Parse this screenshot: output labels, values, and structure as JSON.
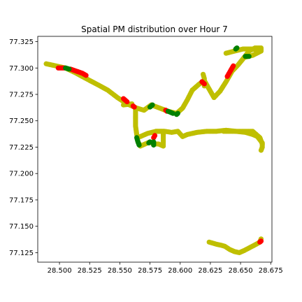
{
  "chart_data": {
    "type": "scatter",
    "title": "Spatial PM distribution over Hour 7",
    "xlabel": "",
    "ylabel": "",
    "xlim": [
      28.482,
      28.676
    ],
    "ylim": [
      77.116,
      77.33
    ],
    "grid": false,
    "legend": "none",
    "x_ticks": [
      "28.500",
      "28.525",
      "28.550",
      "28.575",
      "28.600",
      "28.625",
      "28.650",
      "28.675"
    ],
    "x_tick_values": [
      28.5,
      28.525,
      28.55,
      28.575,
      28.6,
      28.625,
      28.65,
      28.675
    ],
    "y_ticks": [
      "77.125",
      "77.150",
      "77.175",
      "77.200",
      "77.225",
      "77.250",
      "77.275",
      "77.300",
      "77.325"
    ],
    "y_tick_values": [
      77.125,
      77.15,
      77.175,
      77.2,
      77.225,
      77.25,
      77.275,
      77.3,
      77.325
    ],
    "colors": {
      "olive": "#bfbf00",
      "red": "#ff0000",
      "green": "#008000"
    },
    "series": [
      {
        "name": "yellow",
        "color": "#bfbf00",
        "paths": [
          [
            [
              28.489,
              77.304
            ],
            [
              28.497,
              77.302
            ],
            [
              28.505,
              77.3
            ],
            [
              28.514,
              77.295
            ],
            [
              28.522,
              77.29
            ],
            [
              28.532,
              77.284
            ],
            [
              28.54,
              77.279
            ],
            [
              28.548,
              77.272
            ],
            [
              28.556,
              77.266
            ],
            [
              28.564,
              77.262
            ],
            [
              28.57,
              77.26
            ],
            [
              28.576,
              77.265
            ],
            [
              28.583,
              77.262
            ],
            [
              28.59,
              77.259
            ],
            [
              28.597,
              77.257
            ],
            [
              28.602,
              77.262
            ],
            [
              28.606,
              77.27
            ],
            [
              28.61,
              77.279
            ],
            [
              28.616,
              77.285
            ],
            [
              28.62,
              77.288
            ],
            [
              28.624,
              77.28
            ],
            [
              28.628,
              77.272
            ],
            [
              28.633,
              77.278
            ],
            [
              28.638,
              77.287
            ],
            [
              28.643,
              77.297
            ],
            [
              28.648,
              77.303
            ],
            [
              28.653,
              77.31
            ],
            [
              28.657,
              77.316
            ],
            [
              28.662,
              77.319
            ],
            [
              28.667,
              77.319
            ],
            [
              28.667,
              77.316
            ],
            [
              28.66,
              77.312
            ],
            [
              28.653,
              77.31
            ]
          ],
          [
            [
              28.638,
              77.314
            ],
            [
              28.645,
              77.316
            ],
            [
              28.652,
              77.318
            ],
            [
              28.659,
              77.318
            ],
            [
              28.666,
              77.317
            ]
          ],
          [
            [
              28.62,
              77.283
            ],
            [
              28.62,
              77.29
            ],
            [
              28.619,
              77.294
            ]
          ],
          [
            [
              28.553,
              77.265
            ],
            [
              28.56,
              77.266
            ]
          ],
          [
            [
              28.563,
              77.262
            ],
            [
              28.563,
              77.253
            ],
            [
              28.563,
              77.245
            ],
            [
              28.564,
              77.237
            ],
            [
              28.565,
              77.23
            ],
            [
              28.567,
              77.226
            ],
            [
              28.571,
              77.228
            ],
            [
              28.575,
              77.23
            ],
            [
              28.578,
              77.228
            ],
            [
              28.582,
              77.228
            ],
            [
              28.586,
              77.226
            ],
            [
              28.586,
              77.233
            ],
            [
              28.586,
              77.24
            ],
            [
              28.58,
              77.24
            ]
          ],
          [
            [
              28.567,
              77.235
            ],
            [
              28.573,
              77.238
            ],
            [
              28.58,
              77.24
            ],
            [
              28.587,
              77.24
            ],
            [
              28.593,
              77.239
            ],
            [
              28.598,
              77.24
            ],
            [
              28.602,
              77.235
            ],
            [
              28.606,
              77.237
            ],
            [
              28.614,
              77.239
            ],
            [
              28.622,
              77.24
            ],
            [
              28.63,
              77.24
            ],
            [
              28.638,
              77.241
            ],
            [
              28.646,
              77.24
            ],
            [
              28.654,
              77.239
            ],
            [
              28.66,
              77.237
            ],
            [
              28.664,
              77.235
            ],
            [
              28.666,
              77.232
            ],
            [
              28.668,
              77.229
            ],
            [
              28.668,
              77.225
            ],
            [
              28.667,
              77.222
            ]
          ],
          [
            [
              28.636,
              77.24
            ],
            [
              28.648,
              77.24
            ],
            [
              28.66,
              77.24
            ],
            [
              28.666,
              77.234
            ],
            [
              28.668,
              77.228
            ]
          ],
          [
            [
              28.624,
              77.135
            ],
            [
              28.63,
              77.133
            ],
            [
              28.634,
              77.132
            ],
            [
              28.637,
              77.131
            ],
            [
              28.641,
              77.128
            ],
            [
              28.645,
              77.126
            ],
            [
              28.649,
              77.125
            ],
            [
              28.653,
              77.127
            ],
            [
              28.658,
              77.13
            ],
            [
              28.663,
              77.133
            ],
            [
              28.666,
              77.135
            ],
            [
              28.667,
              77.138
            ]
          ]
        ]
      },
      {
        "name": "red",
        "color": "#ff0000",
        "paths": [
          [
            [
              28.499,
              77.3
            ],
            [
              28.504,
              77.3
            ]
          ],
          [
            [
              28.509,
              77.299
            ],
            [
              28.514,
              77.297
            ],
            [
              28.519,
              77.295
            ],
            [
              28.522,
              77.293
            ]
          ],
          [
            [
              28.553,
              77.271
            ],
            [
              28.556,
              77.268
            ]
          ],
          [
            [
              28.561,
              77.264
            ],
            [
              28.562,
              77.263
            ]
          ],
          [
            [
              28.578,
              77.234
            ],
            [
              28.579,
              77.236
            ]
          ],
          [
            [
              28.588,
              77.26
            ],
            [
              28.589,
              77.259
            ]
          ],
          [
            [
              28.618,
              77.287
            ],
            [
              28.62,
              77.285
            ]
          ],
          [
            [
              28.639,
              77.292
            ],
            [
              28.642,
              77.298
            ],
            [
              28.644,
              77.302
            ]
          ],
          [
            [
              28.666,
              77.135
            ],
            [
              28.667,
              77.136
            ]
          ]
        ]
      },
      {
        "name": "green",
        "color": "#008000",
        "paths": [
          [
            [
              28.505,
              77.3
            ],
            [
              28.508,
              77.299
            ]
          ],
          [
            [
              28.575,
              77.263
            ],
            [
              28.577,
              77.265
            ]
          ],
          [
            [
              28.59,
              77.259
            ],
            [
              28.594,
              77.257
            ]
          ],
          [
            [
              28.597,
              77.256
            ],
            [
              28.598,
              77.257
            ]
          ],
          [
            [
              28.564,
              77.234
            ],
            [
              28.565,
              77.23
            ],
            [
              28.566,
              77.227
            ]
          ],
          [
            [
              28.574,
              77.229
            ],
            [
              28.575,
              77.23
            ]
          ],
          [
            [
              28.578,
              77.227
            ],
            [
              28.578,
              77.23
            ]
          ],
          [
            [
              28.646,
              77.318
            ],
            [
              28.647,
              77.319
            ]
          ],
          [
            [
              28.654,
              77.311
            ],
            [
              28.657,
              77.311
            ]
          ]
        ]
      }
    ]
  }
}
